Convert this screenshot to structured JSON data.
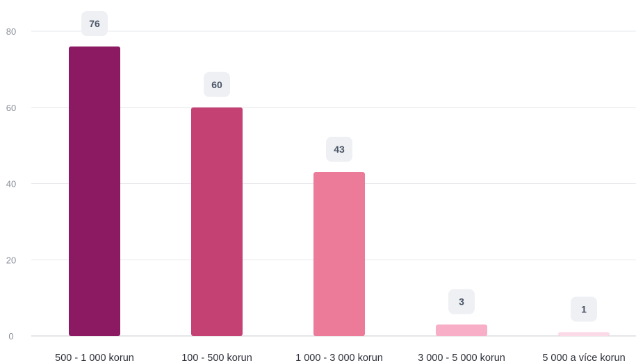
{
  "chart_data": {
    "type": "bar",
    "categories": [
      "500 - 1 000 korun",
      "100 - 500 korun",
      "1 000 - 3 000 korun",
      "3 000 - 5 000 korun",
      "5 000 a více korun"
    ],
    "values": [
      76,
      60,
      43,
      3,
      1
    ],
    "colors": [
      "#8b1a62",
      "#c44273",
      "#ec7b99",
      "#f7aec6",
      "#fcd9e6"
    ],
    "yticks": [
      0,
      20,
      40,
      60,
      80
    ],
    "ylim": [
      0,
      80
    ],
    "data_labels": true,
    "grid": true,
    "legend": "none"
  }
}
